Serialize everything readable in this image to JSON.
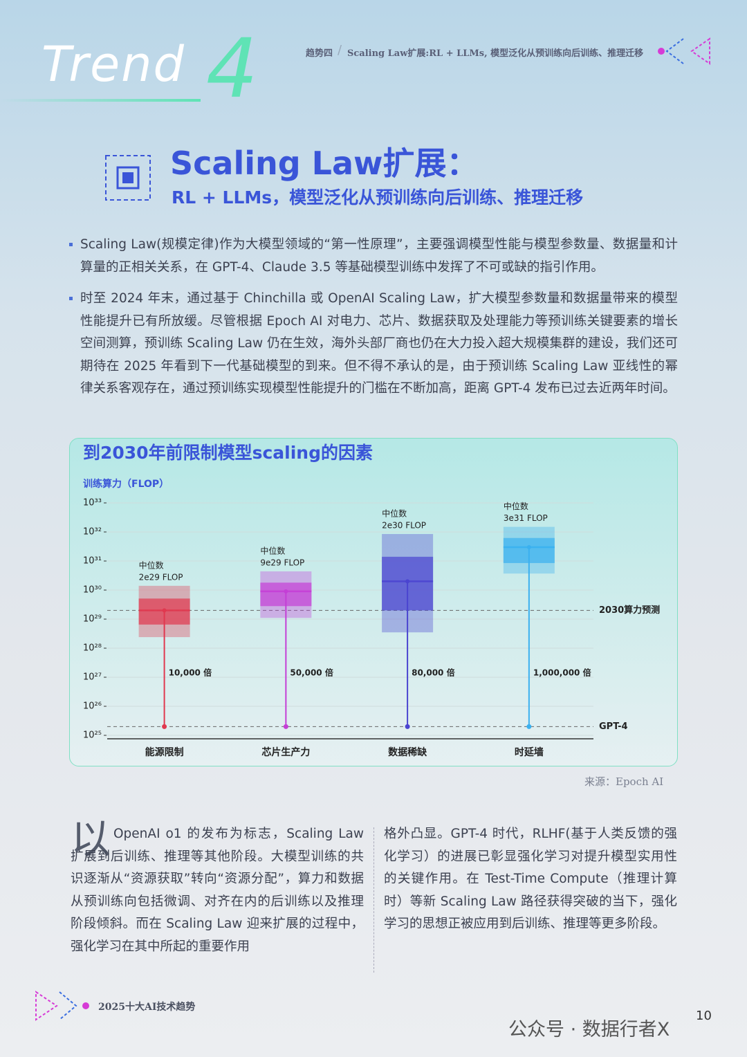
{
  "header": {
    "trend": "Trend",
    "number": "4",
    "section": "趋势四",
    "breadcrumb": "Scaling Law扩展:RL + LLMs, 模型泛化从预训练向后训练、推理迁移"
  },
  "title": {
    "main": "Scaling Law扩展：",
    "sub": "RL + LLMs，模型泛化从预训练向后训练、推理迁移"
  },
  "bullets": [
    "Scaling Law(规模定律)作为大模型领域的“第一性原理”，主要强调模型性能与模型参数量、数据量和计算量的正相关关系，在 GPT-4、Claude 3.5 等基础模型训练中发挥了不可或缺的指引作用。",
    "时至 2024 年末，通过基于 Chinchilla 或 OpenAI Scaling Law，扩大模型参数量和数据量带来的模型性能提升已有所放缓。尽管根据 Epoch AI 对电力、芯片、数据获取及处理能力等预训练关键要素的增长空间测算，预训练 Scaling Law 仍在生效，海外头部厂商也仍在大力投入超大规模集群的建设，我们还可期待在 2025 年看到下一代基础模型的到来。但不得不承认的是，由于预训练 Scaling Law 亚线性的幂律关系客观存在，通过预训练实现模型性能提升的门槛在不断加高，距离 GPT-4 发布已过去近两年时间。"
  ],
  "chart_data": {
    "type": "box",
    "title": "到2030年前限制模型scaling的因素",
    "y_label": "训练算力（FLOP）",
    "log_scale": true,
    "ylim": [
      1e+25,
      1e+33
    ],
    "yticks": [
      {
        "value": 1e+25,
        "label": "10²⁵"
      },
      {
        "value": 1e+26,
        "label": "10²⁶"
      },
      {
        "value": 1e+27,
        "label": "10²⁷"
      },
      {
        "value": 1e+28,
        "label": "10²⁸"
      },
      {
        "value": 1e+29,
        "label": "10²⁹"
      },
      {
        "value": 1e+30,
        "label": "10³⁰"
      },
      {
        "value": 1e+31,
        "label": "10³¹"
      },
      {
        "value": 1e+32,
        "label": "10³²"
      },
      {
        "value": 1e+33,
        "label": "10³³"
      }
    ],
    "median_caption": "中位数",
    "boxes": [
      {
        "category": "能源限制",
        "color": "#e0384f",
        "median": 2e+29,
        "median_label": "2e29 FLOP",
        "outer": [
          2.4e+28,
          1.4e+30
        ],
        "inner": [
          6.5e+28,
          5.1e+29
        ],
        "multiplier_label": "10,000 倍"
      },
      {
        "category": "芯片生产力",
        "color": "#c43fd6",
        "median": 9e+29,
        "median_label": "9e29 FLOP",
        "outer": [
          1.1e+29,
          4.4e+30
        ],
        "inner": [
          2.8e+29,
          1.8e+30
        ],
        "multiplier_label": "50,000 倍"
      },
      {
        "category": "数据稀缺",
        "color": "#4a44d0",
        "median": 2e+30,
        "median_label": "2e30 FLOP",
        "outer": [
          3.5e+28,
          8.5e+31
        ],
        "inner": [
          2e+29,
          1.4e+31
        ],
        "multiplier_label": "80,000 倍"
      },
      {
        "category": "时延墙",
        "color": "#3ab0ef",
        "median": 3e+31,
        "median_label": "3e31 FLOP",
        "outer": [
          3.7e+30,
          1.5e+32
        ],
        "inner": [
          8.5e+30,
          6.2e+31
        ],
        "multiplier_label": "1,000,000 倍"
      }
    ],
    "reference_lines": [
      {
        "value": 2e+29,
        "label": "2030算力预测"
      },
      {
        "value": 2e+25,
        "label": "GPT-4"
      }
    ]
  },
  "source": "来源：Epoch AI",
  "body": {
    "drop_cap": "以",
    "left": "OpenAI o1 的发布为标志，Scaling Law 扩展到后训练、推理等其他阶段。大模型训练的共识逐渐从“资源获取”转向“资源分配”，算力和数据从预训练向包括微调、对齐在内的后训练以及推理阶段倾斜。而在 Scaling Law 迎来扩展的过程中，强化学习在其中所起的重要作用",
    "right": "格外凸显。GPT-4 时代，RLHF(基于人类反馈的强化学习）的进展已彰显强化学习对提升模型实用性的关键作用。在 Test-Time Compute（推理计算时）等新 Scaling Law 路径获得突破的当下，强化学习的思想正被应用到后训练、推理等更多阶段。"
  },
  "footer": {
    "report": "2025十大AI技术趋势",
    "page": "10",
    "watermark": "公众号 · 数据行者X"
  }
}
